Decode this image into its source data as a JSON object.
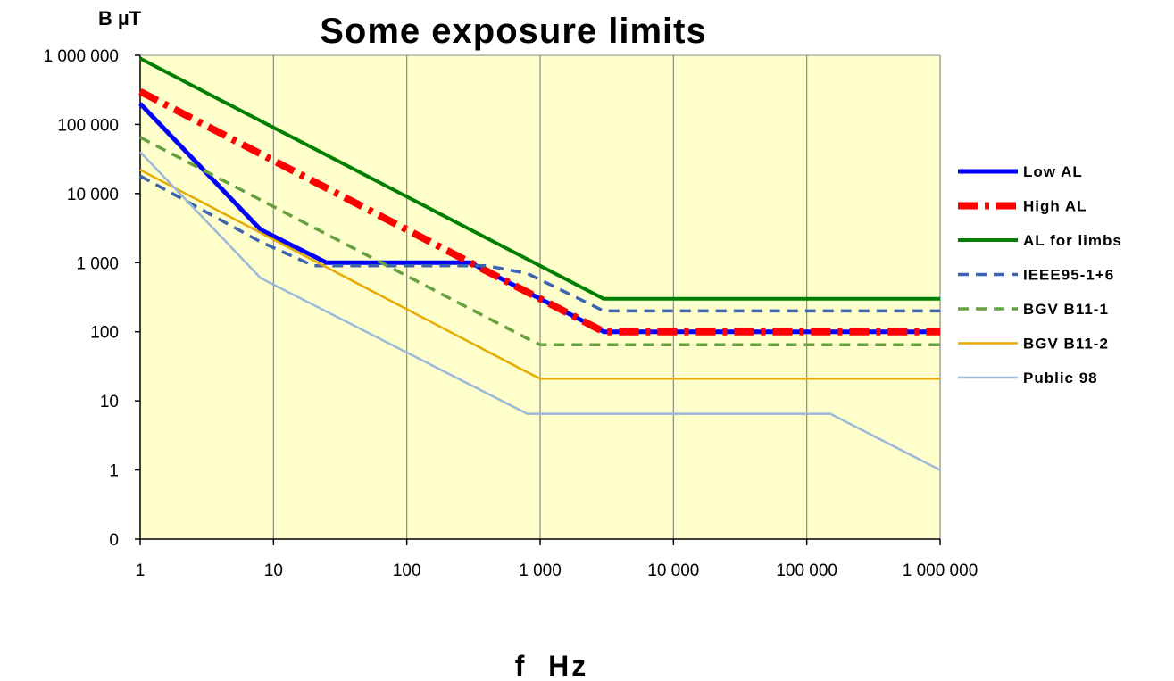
{
  "chart_data": {
    "type": "line",
    "title": "Some exposure limits",
    "ylabel": "B µT",
    "xlabel": "f  Hz",
    "x_scale": "log",
    "y_scale": "log",
    "xlim": [
      1,
      1000000
    ],
    "ylim": [
      0.1,
      1000000
    ],
    "x_ticks": [
      1,
      10,
      100,
      1000,
      10000,
      100000,
      1000000
    ],
    "x_tick_labels": [
      "1",
      "10",
      "100",
      "1 000",
      "10 000",
      "100 000",
      "1 000 000"
    ],
    "y_ticks": [
      0.1,
      1,
      10,
      100,
      1000,
      10000,
      100000,
      1000000
    ],
    "y_tick_labels": [
      "0",
      "1",
      "10",
      "100",
      "1 000",
      "10 000",
      "100 000",
      "1 000 000"
    ],
    "grid": "vertical",
    "plot_background": "#ffffcc",
    "legend_position": "right",
    "series": [
      {
        "name": "Low AL",
        "color": "#0000ff",
        "style": "solid-thick",
        "points": [
          [
            1,
            200000
          ],
          [
            8,
            3000
          ],
          [
            25,
            1000
          ],
          [
            300,
            1000
          ],
          [
            3000,
            100
          ],
          [
            1000000,
            100
          ]
        ]
      },
      {
        "name": "High AL",
        "color": "#ff0000",
        "style": "dash-dot-thick",
        "points": [
          [
            1,
            300000
          ],
          [
            3000,
            100
          ],
          [
            1000000,
            100
          ]
        ]
      },
      {
        "name": "AL for limbs",
        "color": "#008000",
        "style": "solid",
        "points": [
          [
            1,
            900000
          ],
          [
            3000,
            300
          ],
          [
            1000000,
            300
          ]
        ]
      },
      {
        "name": "IEEE95-1+6",
        "color": "#3b63b0",
        "style": "dashed",
        "points": [
          [
            1,
            18000
          ],
          [
            8,
            2000
          ],
          [
            20,
            900
          ],
          [
            400,
            900
          ],
          [
            800,
            700
          ],
          [
            3000,
            200
          ],
          [
            1000000,
            200
          ]
        ]
      },
      {
        "name": "BGV B11-1",
        "color": "#66a040",
        "style": "dashed",
        "points": [
          [
            1,
            65000
          ],
          [
            800,
            80
          ],
          [
            1000,
            65
          ],
          [
            1000000,
            65
          ]
        ]
      },
      {
        "name": "BGV B11-2",
        "color": "#e6aa00",
        "style": "solid-thin",
        "points": [
          [
            1,
            22000
          ],
          [
            800,
            26
          ],
          [
            1000,
            21
          ],
          [
            1000000,
            21
          ]
        ]
      },
      {
        "name": "Public 98",
        "color": "#9ab8d8",
        "style": "solid-thin",
        "points": [
          [
            1,
            40000
          ],
          [
            8,
            600
          ],
          [
            800,
            6.5
          ],
          [
            150000,
            6.5
          ],
          [
            1000000,
            1
          ]
        ]
      }
    ]
  }
}
